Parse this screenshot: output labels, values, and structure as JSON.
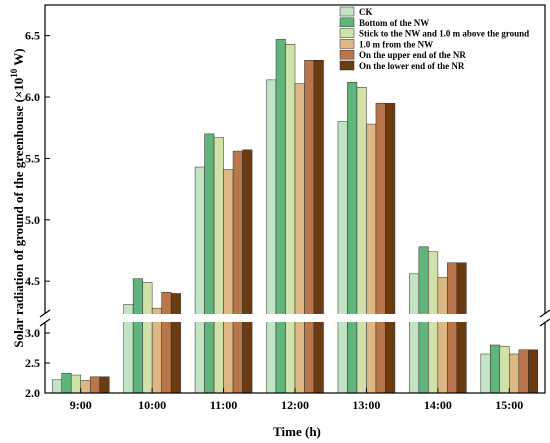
{
  "chart_data": {
    "type": "bar",
    "xlabel": "Time (h)",
    "ylabel_prefix": "Solar radiation of ground of the greenhouse (×10",
    "ylabel_exp": "10",
    "ylabel_suffix": " W)",
    "categories": [
      "9:00",
      "10:00",
      "11:00",
      "12:00",
      "13:00",
      "14:00",
      "15:00"
    ],
    "axis_break": {
      "lower_range": [
        2.0,
        3.25
      ],
      "upper_range": [
        4.2,
        6.75
      ]
    },
    "yticks_lower": [
      "2.0",
      "2.5",
      "3.0"
    ],
    "yticks_upper": [
      "4.5",
      "5.0",
      "5.5",
      "6.0",
      "6.5"
    ],
    "legend_position": "top-right",
    "series": [
      {
        "name": "CK",
        "color": "#c2e4c4",
        "values": [
          2.22,
          4.31,
          5.43,
          6.14,
          5.8,
          4.56,
          2.65
        ]
      },
      {
        "name": "Bottom of the NW",
        "color": "#5fb57c",
        "values": [
          2.33,
          4.52,
          5.7,
          6.47,
          6.12,
          4.78,
          2.8
        ]
      },
      {
        "name": "Stick to the NW and 1.0 m above the ground",
        "color": "#d0e2aa",
        "values": [
          2.3,
          4.49,
          5.67,
          6.43,
          6.08,
          4.74,
          2.78
        ]
      },
      {
        "name": "1.0 m from the NW",
        "color": "#ddb885",
        "values": [
          2.21,
          4.28,
          5.41,
          6.11,
          5.78,
          4.53,
          2.65
        ]
      },
      {
        "name": "On the upper end of the NR",
        "color": "#b8764a",
        "values": [
          2.27,
          4.41,
          5.56,
          6.3,
          5.95,
          4.65,
          2.72
        ]
      },
      {
        "name": "On the lower end of the NR",
        "color": "#6b3c12",
        "values": [
          2.27,
          4.4,
          5.57,
          6.3,
          5.95,
          4.65,
          2.72
        ]
      }
    ]
  }
}
